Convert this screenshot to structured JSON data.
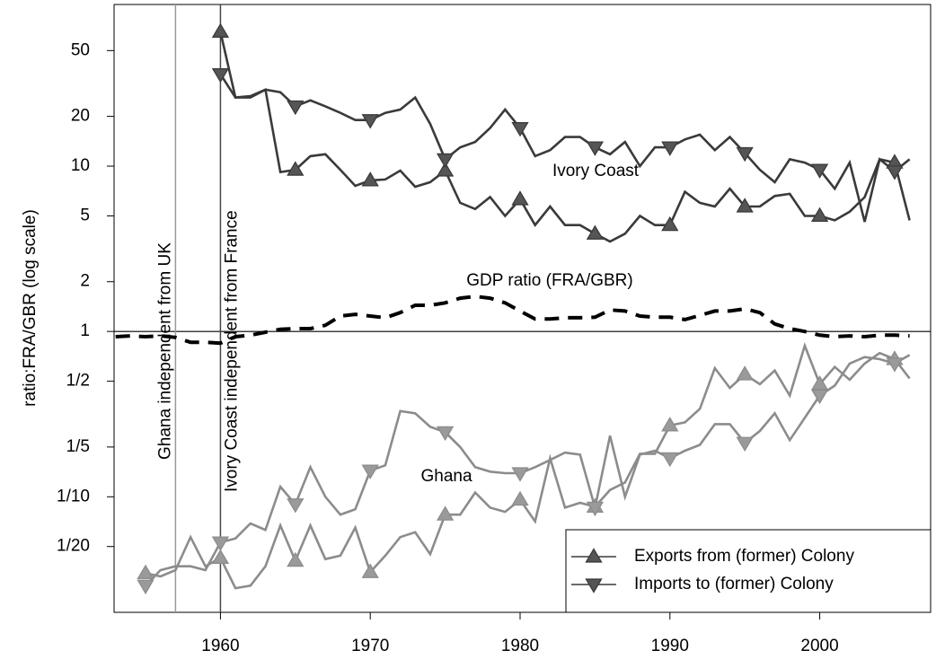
{
  "chart_data": {
    "type": "line",
    "y_label": "ratio:FRA/GBR (log scale)",
    "log_scale": true,
    "x": [
      1953,
      1954,
      1955,
      1956,
      1957,
      1958,
      1959,
      1960,
      1961,
      1962,
      1963,
      1964,
      1965,
      1966,
      1967,
      1968,
      1969,
      1970,
      1971,
      1972,
      1973,
      1974,
      1975,
      1976,
      1977,
      1978,
      1979,
      1980,
      1981,
      1982,
      1983,
      1984,
      1985,
      1986,
      1987,
      1988,
      1989,
      1990,
      1991,
      1992,
      1993,
      1994,
      1995,
      1996,
      1997,
      1998,
      1999,
      2000,
      2001,
      2002,
      2003,
      2004,
      2005,
      2006
    ],
    "xlim": [
      1952.9,
      2007.4
    ],
    "xticks": [
      1960,
      1970,
      1980,
      1990,
      2000
    ],
    "ylim": [
      0.02,
      95
    ],
    "yticks": [
      50,
      20,
      10,
      5,
      2,
      1,
      {
        "value": 0.5,
        "label": "1/2"
      },
      {
        "value": 0.2,
        "label": "1/5"
      },
      {
        "value": 0.1,
        "label": "1/10"
      },
      {
        "value": 0.05,
        "label": "1/20"
      }
    ],
    "hline": 1,
    "vlines": [
      {
        "x": 1957,
        "color": "#999999",
        "label": "Ghana independent from UK"
      },
      {
        "x": 1960,
        "color": "#444444",
        "label": "Ivory Coast independent from France"
      }
    ],
    "series": [
      {
        "marker": "up",
        "color": "#3a3a3a",
        "marker_fill": "#555555",
        "values": [
          null,
          null,
          null,
          null,
          null,
          null,
          null,
          65,
          26,
          26.5,
          29,
          9.2,
          9.5,
          11.5,
          11.8,
          9.5,
          7.6,
          8.2,
          8.3,
          9.4,
          7.5,
          8.0,
          9.4,
          6.0,
          5.5,
          6.5,
          5.0,
          6.3,
          4.4,
          5.7,
          4.4,
          4.4,
          3.9,
          3.5,
          3.9,
          5.0,
          4.4,
          4.4,
          7.0,
          6.0,
          5.7,
          7.3,
          5.7,
          5.7,
          6.6,
          6.8,
          5.0,
          5.0,
          4.7,
          5.3,
          6.5,
          11,
          10.5,
          4.7
        ]
      },
      {
        "marker": "down",
        "color": "#3a3a3a",
        "marker_fill": "#555555",
        "values": [
          null,
          null,
          null,
          null,
          null,
          null,
          null,
          36,
          26,
          26,
          29,
          28,
          23,
          25,
          23,
          21,
          19,
          19,
          21,
          22,
          26,
          18,
          11,
          13,
          14,
          17,
          22,
          17,
          11.5,
          12.5,
          15,
          15,
          13,
          11.8,
          14,
          10,
          13,
          13,
          14.5,
          15.5,
          12.5,
          15,
          12,
          9.5,
          8,
          11,
          10.5,
          9.5,
          7.3,
          10.5,
          4.6,
          11,
          9.3,
          11
        ]
      },
      {
        "marker": "up",
        "color": "#8c8c8c",
        "marker_fill": "#9a9a9a",
        "values": [
          null,
          null,
          0.0345,
          0.033,
          0.036,
          0.057,
          0.038,
          0.0427,
          0.028,
          0.029,
          0.038,
          0.067,
          0.041,
          0.067,
          0.042,
          0.044,
          0.065,
          0.035,
          0.044,
          0.057,
          0.061,
          0.045,
          0.078,
          0.078,
          0.106,
          0.086,
          0.081,
          0.096,
          0.071,
          0.171,
          0.086,
          0.092,
          0.087,
          0.11,
          0.122,
          0.182,
          0.182,
          0.27,
          0.282,
          0.34,
          0.6,
          0.455,
          0.55,
          0.48,
          0.58,
          0.41,
          0.82,
          0.48,
          0.61,
          0.51,
          0.64,
          0.74,
          0.68,
          0.52
        ]
      },
      {
        "marker": "down",
        "color": "#8c8c8c",
        "marker_fill": "#9a9a9a",
        "values": [
          null,
          null,
          0.029,
          0.036,
          0.038,
          0.038,
          0.036,
          0.053,
          0.056,
          0.069,
          0.063,
          0.115,
          0.09,
          0.151,
          0.1,
          0.078,
          0.084,
          0.144,
          0.155,
          0.33,
          0.32,
          0.265,
          0.246,
          0.2,
          0.151,
          0.142,
          0.139,
          0.139,
          0.151,
          0.167,
          0.185,
          0.18,
          0.086,
          0.234,
          0.1,
          0.18,
          0.19,
          0.171,
          0.19,
          0.206,
          0.275,
          0.275,
          0.212,
          0.25,
          0.32,
          0.22,
          0.3,
          0.41,
          0.47,
          0.64,
          0.7,
          0.68,
          0.64,
          0.72
        ]
      },
      {
        "dashed": true,
        "color": "#000000",
        "values": [
          0.93,
          0.94,
          0.93,
          0.94,
          0.92,
          0.86,
          0.86,
          0.85,
          0.93,
          0.95,
          0.99,
          1.03,
          1.04,
          1.04,
          1.09,
          1.24,
          1.27,
          1.24,
          1.21,
          1.3,
          1.44,
          1.44,
          1.49,
          1.59,
          1.63,
          1.59,
          1.49,
          1.33,
          1.19,
          1.19,
          1.21,
          1.21,
          1.22,
          1.35,
          1.33,
          1.24,
          1.22,
          1.22,
          1.18,
          1.25,
          1.33,
          1.33,
          1.37,
          1.3,
          1.11,
          1.04,
          1.0,
          0.95,
          0.93,
          0.94,
          0.93,
          0.95,
          0.95,
          0.94
        ]
      }
    ],
    "annotations": [
      {
        "text": "Ivory Coast",
        "color": "#555555"
      },
      {
        "text": "Ghana",
        "color": "#8c8c8c"
      },
      {
        "text": "GDP ratio (FRA/GBR)",
        "color": "#000000"
      }
    ],
    "legend": [
      {
        "label": "Exports from (former) Colony",
        "marker": "up"
      },
      {
        "label": "Imports to (former) Colony",
        "marker": "down"
      }
    ],
    "legend_position": "bottom-right"
  }
}
